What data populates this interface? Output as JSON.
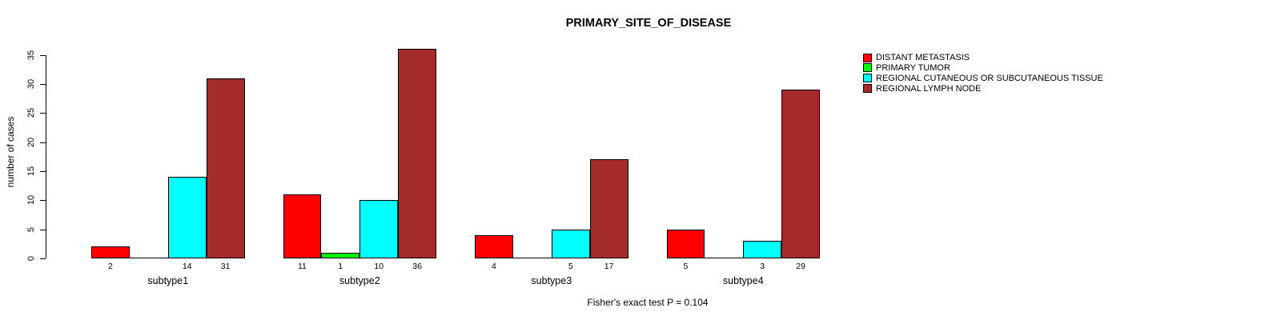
{
  "title": "PRIMARY_SITE_OF_DISEASE",
  "annotation": "Fisher's exact test P = 0.104",
  "chart_data": {
    "type": "bar",
    "title": "PRIMARY_SITE_OF_DISEASE",
    "xlabel": "",
    "ylabel": "number of cases",
    "categories": [
      "subtype1",
      "subtype2",
      "subtype3",
      "subtype4"
    ],
    "series": [
      {
        "name": "DISTANT METASTASIS",
        "color": "#FF0000",
        "values": [
          2,
          11,
          4,
          5
        ]
      },
      {
        "name": "PRIMARY TUMOR",
        "color": "#00FF00",
        "values": [
          0,
          1,
          0,
          0
        ]
      },
      {
        "name": "REGIONAL CUTANEOUS OR SUBCUTANEOUS TISSUE",
        "color": "#00FFFF",
        "values": [
          14,
          10,
          5,
          3
        ]
      },
      {
        "name": "REGIONAL LYMPH NODE",
        "color": "#A52A2A",
        "values": [
          31,
          36,
          17,
          29
        ]
      }
    ],
    "bar_value_labels": {
      "subtype1": [
        2,
        14,
        31
      ],
      "subtype2": [
        11,
        1,
        10,
        36
      ],
      "subtype3": [
        4,
        5,
        17
      ],
      "subtype4": [
        5,
        3,
        29
      ]
    },
    "yticks": [
      0,
      5,
      10,
      15,
      20,
      25,
      30,
      35
    ],
    "ylim": [
      0,
      36
    ],
    "grid": false,
    "legend_position": "top-right",
    "annotation": "Fisher's exact test P = 0.104"
  }
}
